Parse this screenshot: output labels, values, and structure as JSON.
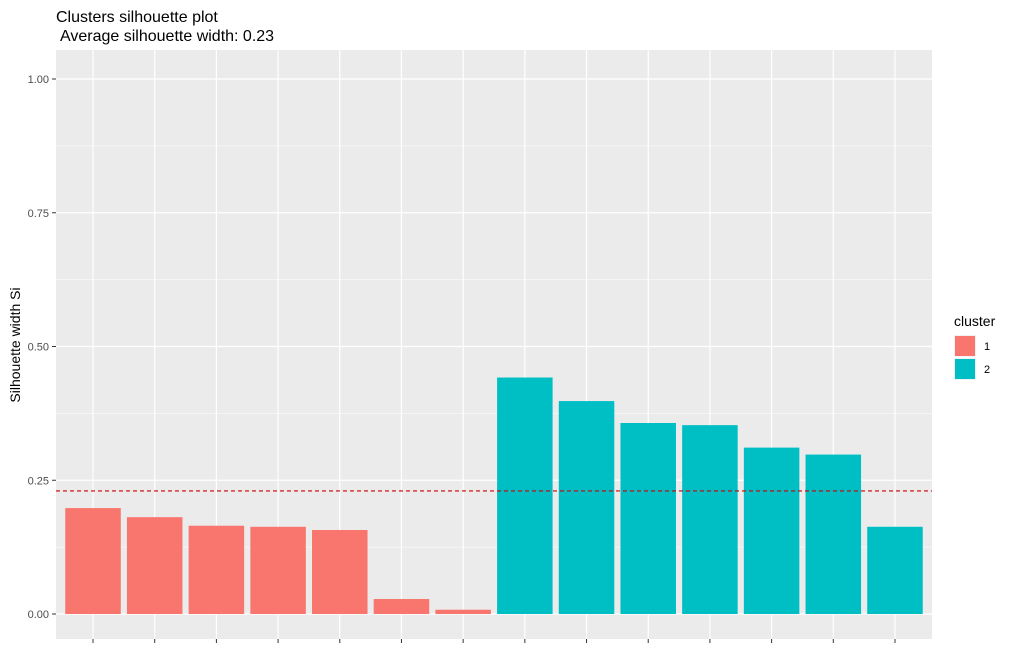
{
  "chart_data": {
    "type": "bar",
    "title": "Clusters silhouette plot",
    "subtitle": "Average silhouette width: 0.23",
    "xlabel": "",
    "ylabel": "Silhouette width Si",
    "ylim": [
      0,
      1
    ],
    "yticks": [
      "0.00",
      "0.25",
      "0.50",
      "0.75",
      "1.00"
    ],
    "ytick_values": [
      0,
      0.25,
      0.5,
      0.75,
      1.0
    ],
    "grid": true,
    "reference_line": {
      "value": 0.23,
      "style": "dashed",
      "color": "#cc0000"
    },
    "legend": {
      "title": "cluster",
      "placement": "right",
      "entries": [
        {
          "label": "1",
          "color": "#F8766D"
        },
        {
          "label": "2",
          "color": "#00BFC4"
        }
      ]
    },
    "bars": [
      {
        "cluster": "1",
        "value": 0.198
      },
      {
        "cluster": "1",
        "value": 0.181
      },
      {
        "cluster": "1",
        "value": 0.165
      },
      {
        "cluster": "1",
        "value": 0.163
      },
      {
        "cluster": "1",
        "value": 0.157
      },
      {
        "cluster": "1",
        "value": 0.028
      },
      {
        "cluster": "1",
        "value": 0.008
      },
      {
        "cluster": "2",
        "value": 0.442
      },
      {
        "cluster": "2",
        "value": 0.398
      },
      {
        "cluster": "2",
        "value": 0.357
      },
      {
        "cluster": "2",
        "value": 0.353
      },
      {
        "cluster": "2",
        "value": 0.311
      },
      {
        "cluster": "2",
        "value": 0.298
      },
      {
        "cluster": "2",
        "value": 0.163
      }
    ]
  },
  "colors": {
    "panel_background": "#EBEBEB",
    "grid_major": "#FFFFFF",
    "cluster_1": "#F8766D",
    "cluster_2": "#00BFC4"
  }
}
